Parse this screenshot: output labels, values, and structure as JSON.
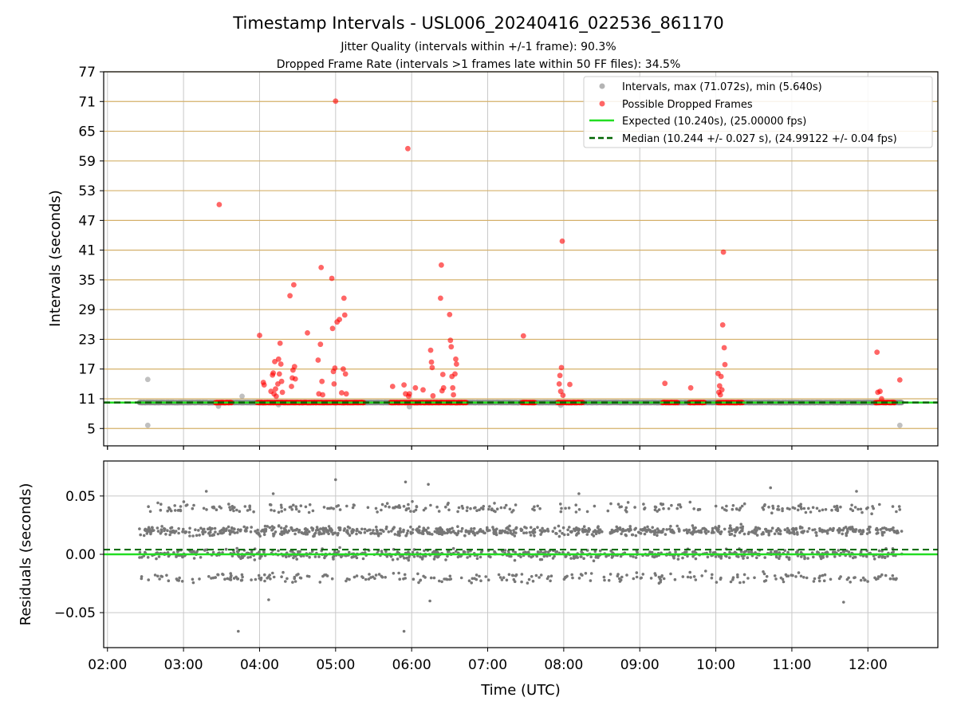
{
  "chart_data": [
    {
      "type": "scatter",
      "title": "Timestamp Intervals - USL006_20240416_022536_861170",
      "subtitle_lines": [
        "Jitter Quality (intervals within +/-1 frame): 90.3%",
        "Dropped Frame Rate (intervals >1 frames late within 50 FF files): 34.5%"
      ],
      "xlabel": "",
      "ylabel": "Intervals (seconds)",
      "x_unit": "UTC hours",
      "xlim": [
        1.95,
        12.92
      ],
      "ylim": [
        1.5,
        77
      ],
      "yticks": [
        5,
        11,
        17,
        23,
        29,
        35,
        41,
        47,
        53,
        59,
        65,
        71,
        77
      ],
      "xticks": [
        2,
        3,
        4,
        5,
        6,
        7,
        8,
        9,
        10,
        11,
        12
      ],
      "xtick_labels": [
        "02:00",
        "03:00",
        "04:00",
        "05:00",
        "06:00",
        "07:00",
        "08:00",
        "09:00",
        "10:00",
        "11:00",
        "12:00"
      ],
      "grid": true,
      "legend_position": "top-right",
      "series": [
        {
          "name": "Intervals, max (71.072s), min (5.640s)",
          "style": "scatter",
          "color": "#8c8c8c",
          "alpha": 0.55,
          "band": {
            "x_range": [
              2.42,
              12.45
            ],
            "y": 10.24,
            "spread": 0.04
          },
          "outliers": [
            [
              2.53,
              14.9
            ],
            [
              2.53,
              5.64
            ],
            [
              3.46,
              9.5
            ],
            [
              3.77,
              11.5
            ],
            [
              4.25,
              9.8
            ],
            [
              5.97,
              9.4
            ],
            [
              7.96,
              9.7
            ],
            [
              12.42,
              5.64
            ]
          ]
        },
        {
          "name": "Possible Dropped Frames",
          "style": "scatter",
          "color": "#ff0000",
          "alpha": 0.6,
          "clusters": [
            [
              3.42,
              3.63
            ],
            [
              3.97,
              5.37
            ],
            [
              5.72,
              6.72
            ],
            [
              7.45,
              7.62
            ],
            [
              7.92,
              8.25
            ],
            [
              9.3,
              9.5
            ],
            [
              9.65,
              9.85
            ],
            [
              10.02,
              10.35
            ],
            [
              12.1,
              12.35
            ]
          ],
          "cluster_y": 10.24,
          "points": [
            [
              3.47,
              50.2
            ],
            [
              4.0,
              23.8
            ],
            [
              4.05,
              14.3
            ],
            [
              4.06,
              13.8
            ],
            [
              4.15,
              12.5
            ],
            [
              4.17,
              15.8
            ],
            [
              4.18,
              16.2
            ],
            [
              4.19,
              12.0
            ],
            [
              4.2,
              18.5
            ],
            [
              4.21,
              13.0
            ],
            [
              4.22,
              11.5
            ],
            [
              4.24,
              14.0
            ],
            [
              4.25,
              19.0
            ],
            [
              4.26,
              16.0
            ],
            [
              4.27,
              22.2
            ],
            [
              4.28,
              18.0
            ],
            [
              4.29,
              14.5
            ],
            [
              4.3,
              12.3
            ],
            [
              4.4,
              31.8
            ],
            [
              4.42,
              13.5
            ],
            [
              4.43,
              15.2
            ],
            [
              4.44,
              16.8
            ],
            [
              4.45,
              34.0
            ],
            [
              4.46,
              17.5
            ],
            [
              4.47,
              15.0
            ],
            [
              4.63,
              24.3
            ],
            [
              4.77,
              18.8
            ],
            [
              4.78,
              12.0
            ],
            [
              4.8,
              22.0
            ],
            [
              4.81,
              37.5
            ],
            [
              4.82,
              14.5
            ],
            [
              4.83,
              11.8
            ],
            [
              4.95,
              35.3
            ],
            [
              4.96,
              25.2
            ],
            [
              4.97,
              16.5
            ],
            [
              4.98,
              14.0
            ],
            [
              4.99,
              17.2
            ],
            [
              5.0,
              71.07
            ],
            [
              5.02,
              26.5
            ],
            [
              5.05,
              27.0
            ],
            [
              5.08,
              12.2
            ],
            [
              5.1,
              17.0
            ],
            [
              5.11,
              31.3
            ],
            [
              5.12,
              27.9
            ],
            [
              5.13,
              16.0
            ],
            [
              5.14,
              12.0
            ],
            [
              5.75,
              13.5
            ],
            [
              5.9,
              13.8
            ],
            [
              5.92,
              12.0
            ],
            [
              5.95,
              61.5
            ],
            [
              5.96,
              11.5
            ],
            [
              5.97,
              12.0
            ],
            [
              6.05,
              13.2
            ],
            [
              6.15,
              12.8
            ],
            [
              6.25,
              20.8
            ],
            [
              6.26,
              18.4
            ],
            [
              6.27,
              17.3
            ],
            [
              6.28,
              11.6
            ],
            [
              6.38,
              31.3
            ],
            [
              6.39,
              38.0
            ],
            [
              6.4,
              12.6
            ],
            [
              6.41,
              15.9
            ],
            [
              6.42,
              13.2
            ],
            [
              6.5,
              28.0
            ],
            [
              6.51,
              22.8
            ],
            [
              6.52,
              21.5
            ],
            [
              6.53,
              15.5
            ],
            [
              6.54,
              13.2
            ],
            [
              6.55,
              11.8
            ],
            [
              6.57,
              16.0
            ],
            [
              6.58,
              19.0
            ],
            [
              6.59,
              18.0
            ],
            [
              7.47,
              23.7
            ],
            [
              7.94,
              14.0
            ],
            [
              7.95,
              15.7
            ],
            [
              7.96,
              12.5
            ],
            [
              7.97,
              17.3
            ],
            [
              7.98,
              42.8
            ],
            [
              7.99,
              11.7
            ],
            [
              8.08,
              13.9
            ],
            [
              9.33,
              14.1
            ],
            [
              9.67,
              13.2
            ],
            [
              10.03,
              16.1
            ],
            [
              10.04,
              12.3
            ],
            [
              10.05,
              13.6
            ],
            [
              10.06,
              11.8
            ],
            [
              10.07,
              15.5
            ],
            [
              10.08,
              12.8
            ],
            [
              10.09,
              25.9
            ],
            [
              10.1,
              40.6
            ],
            [
              10.11,
              21.3
            ],
            [
              10.12,
              17.9
            ],
            [
              12.12,
              20.4
            ],
            [
              12.13,
              12.3
            ],
            [
              12.16,
              12.5
            ],
            [
              12.18,
              11.0
            ],
            [
              12.42,
              14.8
            ]
          ]
        },
        {
          "name": "Expected (10.240s), (25.00000 fps)",
          "style": "solid-line",
          "color": "#22dd22",
          "y": 10.24
        },
        {
          "name": "Median (10.244 +/- 0.027 s), (24.99122 +/- 0.04 fps)",
          "style": "dashed-line",
          "color": "#006400",
          "y": 10.244
        }
      ],
      "horizontal_lines_color": "#d4b06a"
    },
    {
      "type": "scatter",
      "title": "",
      "xlabel": "Time (UTC)",
      "ylabel": "Residuals (seconds)",
      "x_unit": "UTC hours",
      "xlim": [
        1.95,
        12.92
      ],
      "ylim": [
        -0.08,
        0.08
      ],
      "yticks": [
        0.05,
        0.0,
        -0.05
      ],
      "ytick_labels": [
        "0.05",
        "0.00",
        "−0.05"
      ],
      "xticks": [
        2,
        3,
        4,
        5,
        6,
        7,
        8,
        9,
        10,
        11,
        12
      ],
      "xtick_labels": [
        "02:00",
        "03:00",
        "04:00",
        "05:00",
        "06:00",
        "07:00",
        "08:00",
        "09:00",
        "10:00",
        "11:00",
        "12:00"
      ],
      "grid": true,
      "series": [
        {
          "name": "",
          "style": "scatter",
          "color": "#777777",
          "x_range": [
            2.42,
            12.45
          ],
          "levels": [
            0.02,
            0.0,
            -0.02,
            0.04
          ],
          "level_weights": [
            0.42,
            0.32,
            0.14,
            0.12
          ],
          "spread": 0.006,
          "extremes": [
            [
              3.3,
              0.054
            ],
            [
              3.72,
              -0.066
            ],
            [
              4.12,
              -0.039
            ],
            [
              4.18,
              0.052
            ],
            [
              5.0,
              0.064
            ],
            [
              5.9,
              -0.066
            ],
            [
              5.92,
              0.062
            ],
            [
              6.24,
              -0.04
            ],
            [
              6.22,
              0.06
            ],
            [
              8.2,
              0.052
            ],
            [
              10.72,
              0.057
            ],
            [
              11.68,
              -0.041
            ],
            [
              11.85,
              0.054
            ]
          ]
        },
        {
          "name": "",
          "style": "solid-line",
          "color": "#22dd22",
          "y": 0.0
        },
        {
          "name": "",
          "style": "dashed-line",
          "color": "#006400",
          "y": 0.004
        }
      ]
    }
  ]
}
